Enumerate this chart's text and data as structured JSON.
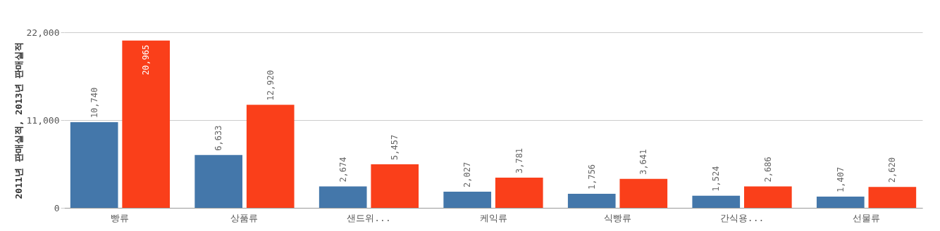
{
  "chart_data": {
    "type": "bar",
    "ylabel": "2011년 판매실적, 2013년 판매실적",
    "categories": [
      "빵류",
      "상품류",
      "샌드위...",
      "케익류",
      "식빵류",
      "간식용...",
      "선물류"
    ],
    "series": [
      {
        "color": "#4477aa",
        "values": [
          10740,
          6633,
          2674,
          2027,
          1756,
          1524,
          1407
        ],
        "value_labels": [
          "10,740",
          "6,633",
          "2,674",
          "2,027",
          "1,756",
          "1,524",
          "1,407"
        ]
      },
      {
        "color": "#fa3f1a",
        "values": [
          20965,
          12920,
          5457,
          3781,
          3641,
          2686,
          2620
        ],
        "value_labels": [
          "20,965",
          "12,920",
          "5,457",
          "3,781",
          "3,641",
          "2,686",
          "2,620"
        ]
      }
    ],
    "ylim": [
      0,
      22000
    ],
    "yticks": [
      0,
      {
        "value": 11000,
        "label": "11,000"
      },
      {
        "value": 22000,
        "label": "22,000"
      }
    ],
    "grid": "y",
    "legend": false
  }
}
